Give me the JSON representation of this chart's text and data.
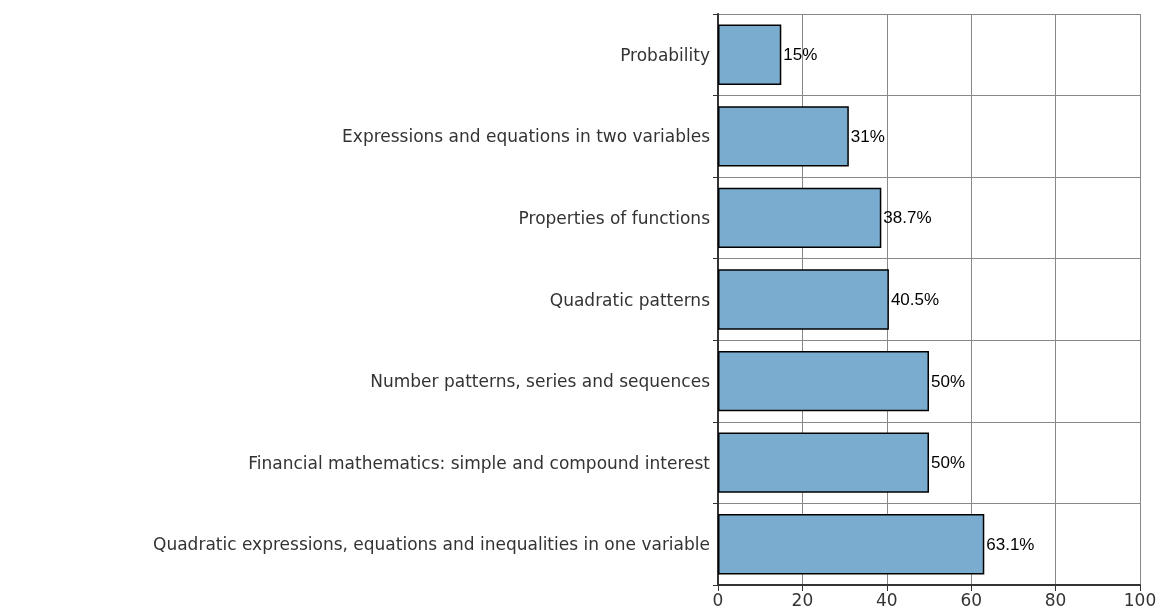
{
  "chart_data": {
    "type": "bar",
    "orientation": "horizontal",
    "categories": [
      "Probability",
      "Expressions and equations in two variables",
      "Properties of functions",
      "Quadratic patterns",
      "Number patterns, series and sequences",
      "Financial mathematics: simple and compound interest",
      "Quadratic expressions, equations and inequalities in one variable"
    ],
    "values": [
      15,
      31,
      38.7,
      40.5,
      50,
      50,
      63.1
    ],
    "value_labels": [
      "15%",
      "31%",
      "38.7%",
      "40.5%",
      "50%",
      "50%",
      "63.1%"
    ],
    "color": "#7aaccf",
    "xlim": [
      0,
      100
    ],
    "xticks": [
      0,
      20,
      40,
      60,
      80,
      100
    ],
    "grid": true
  }
}
